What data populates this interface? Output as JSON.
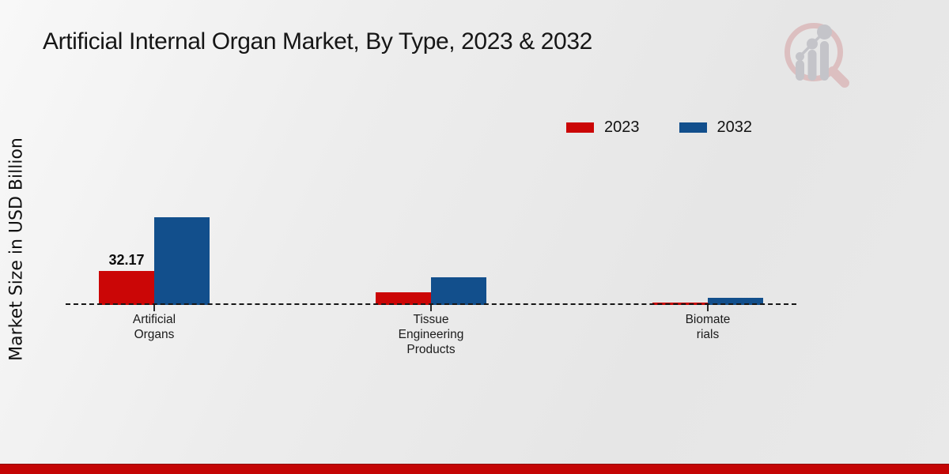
{
  "chart_data": {
    "type": "bar",
    "title": "Artificial Internal Organ Market, By Type, 2023 & 2032",
    "ylabel": "Market Size in USD Billion",
    "xlabel": "",
    "categories": [
      "Artificial\nOrgans",
      "Tissue\nEngineering\nProducts",
      "Biomate\nrials"
    ],
    "category_full_names": [
      "Artificial Organs",
      "Tissue Engineering Products",
      "Biomaterials"
    ],
    "series": [
      {
        "name": "2023",
        "color": "#cb0606",
        "values": [
          32.17,
          12.0,
          2.0
        ],
        "labels": [
          "32.17",
          "",
          ""
        ]
      },
      {
        "name": "2032",
        "color": "#124f8c",
        "values": [
          83.0,
          26.2,
          6.5
        ],
        "labels": [
          "",
          "",
          ""
        ]
      }
    ],
    "value_unit": "USD Billion",
    "ylim": [
      0,
      90
    ],
    "grid": false,
    "legend_position": "top-right",
    "baseline_style": "dashed",
    "annotated_value": "32.17"
  },
  "legend": {
    "items": [
      {
        "label": "2023",
        "color": "#cb0606"
      },
      {
        "label": "2032",
        "color": "#124f8c"
      }
    ]
  },
  "logo": {
    "name": "market-research-magnifier-logo",
    "ring_color": "#d5a0a2",
    "bar_color": "#a9a9b3"
  },
  "theme": {
    "footer_color": "#c40505",
    "background_start": "#f8f8f8",
    "background_end": "#e6e6e6",
    "title_color": "#161616",
    "axis_dash_color": "#161616"
  }
}
